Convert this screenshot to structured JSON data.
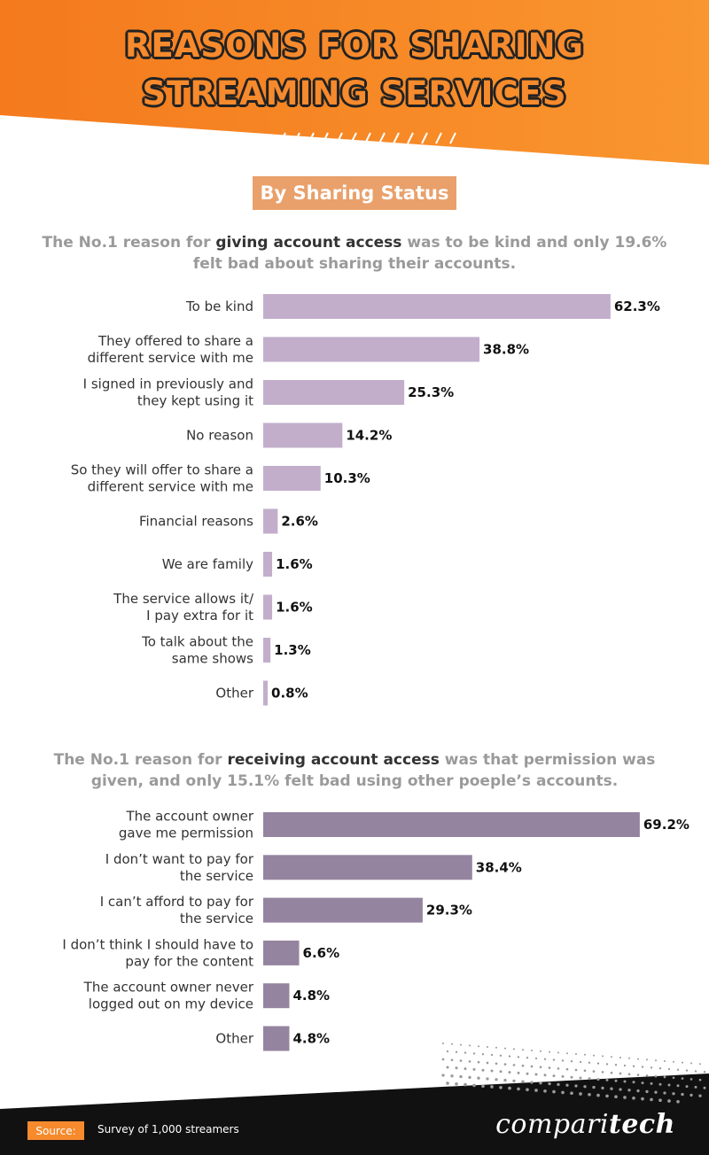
{
  "header": {
    "title_line_1": "REASONS FOR SHARING",
    "title_line_2": "STREAMING SERVICES"
  },
  "colors": {
    "header_orange": "#f68a2d",
    "badge_orange": "#e9a06b",
    "giving_bar": "#c2aecb",
    "receiving_bar": "#95849f",
    "footer_dark": "#111111"
  },
  "section_badge": "By Sharing Status",
  "giving": {
    "subtitle_pre": "The No.1 reason for ",
    "subtitle_highlight": "giving account access",
    "subtitle_post": " was to be kind and only 19.6% felt bad about sharing their accounts."
  },
  "receiving": {
    "subtitle_pre": "The No.1 reason for ",
    "subtitle_highlight": "receiving account access",
    "subtitle_post": " was that permission was given, and only 15.1% felt bad using other poeple’s accounts."
  },
  "chart_data": [
    {
      "type": "bar",
      "orientation": "horizontal",
      "categories": [
        [
          "To be kind"
        ],
        [
          "They offered to share a",
          "different service with me"
        ],
        [
          "I signed in previously and",
          "they kept using it"
        ],
        [
          "No reason"
        ],
        [
          "So they will offer to share a",
          "different service with me"
        ],
        [
          "Financial reasons"
        ],
        [
          "We are family"
        ],
        [
          "The service allows it/",
          "I pay extra for it"
        ],
        [
          "To talk about the",
          "same shows"
        ],
        [
          "Other"
        ]
      ],
      "values": [
        62.3,
        38.8,
        25.3,
        14.2,
        10.3,
        2.6,
        1.6,
        1.6,
        1.3,
        0.8
      ],
      "value_labels": [
        "62.3%",
        "38.8%",
        "25.3%",
        "14.2%",
        "10.3%",
        "2.6%",
        "1.6%",
        "1.6%",
        "1.3%",
        "0.8%"
      ],
      "unit": "%",
      "xlim": [
        0,
        100
      ],
      "grid": false,
      "legend": "none"
    },
    {
      "type": "bar",
      "orientation": "horizontal",
      "categories": [
        [
          "The account owner",
          "gave me permission"
        ],
        [
          "I don’t want to pay for",
          "the service"
        ],
        [
          "I can’t afford to pay for",
          "the service"
        ],
        [
          "I don’t think I should have to",
          "pay for the content"
        ],
        [
          "The account owner never",
          "logged out on my device"
        ],
        [
          "Other"
        ]
      ],
      "values": [
        69.2,
        38.4,
        29.3,
        6.6,
        4.8,
        4.8
      ],
      "value_labels": [
        "69.2%",
        "38.4%",
        "29.3%",
        "6.6%",
        "4.8%",
        "4.8%"
      ],
      "unit": "%",
      "xlim": [
        0,
        100
      ],
      "grid": false,
      "legend": "none"
    }
  ],
  "footer": {
    "source_label": "Source:",
    "source_text": "Survey of 1,000 streamers",
    "brand_part_1": "compari",
    "brand_part_2": "tech"
  }
}
